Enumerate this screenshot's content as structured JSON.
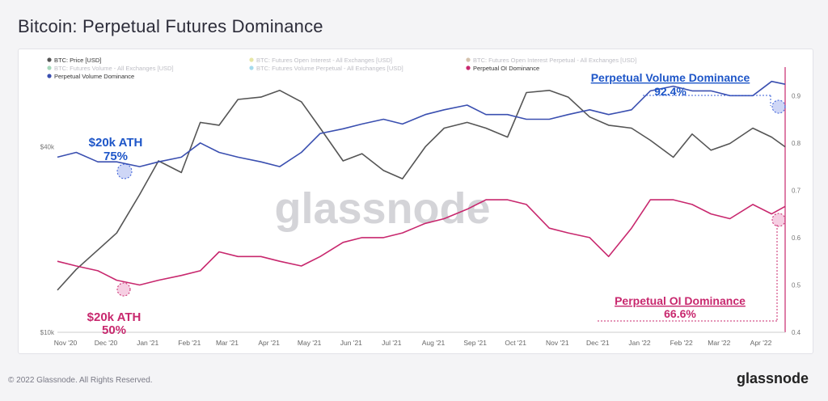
{
  "page": {
    "title": "Bitcoin: Perpetual Futures Dominance",
    "copyright": "© 2022 Glassnode. All Rights Reserved.",
    "brand": "glassnode",
    "watermark": "glassnode"
  },
  "legend": [
    {
      "label": "BTC: Price [USD]",
      "color": "#555555",
      "faded": false
    },
    {
      "label": "BTC: Futures Open Interest - All Exchanges [USD]",
      "color": "#c8c83a",
      "faded": true
    },
    {
      "label": "BTC: Futures Open Interest Perpetual - All Exchanges [USD]",
      "color": "#a0784a",
      "faded": true
    },
    {
      "label": "BTC: Futures Volume - All Exchanges [USD]",
      "color": "#3aa86a",
      "faded": true
    },
    {
      "label": "BTC: Futures Volume Perpetual - All Exchanges [USD]",
      "color": "#3ab0d8",
      "faded": true
    },
    {
      "label": "Perpetual OI Dominance",
      "color": "#c8286e",
      "faded": false
    },
    {
      "label": "Perpetual Volume Dominance",
      "color": "#3a4fb0",
      "faded": false
    }
  ],
  "annotations": {
    "vol_ath_label": "$20k ATH",
    "vol_ath_value": "75%",
    "oi_ath_label": "$20k ATH",
    "oi_ath_value": "50%",
    "vol_now_label": "Perpetual Volume Dominance",
    "vol_now_value": "92.4%",
    "oi_now_label": "Perpetual OI Dominance",
    "oi_now_value": "66.6%"
  },
  "colors": {
    "price": "#555555",
    "volume_dominance": "#3a4fb0",
    "oi_dominance": "#c8286e",
    "annotation_blue": "#1e56c8",
    "annotation_pink": "#c8286e"
  },
  "chart_data": {
    "type": "line",
    "x_ticks": [
      "Nov '20",
      "Dec '20",
      "Jan '21",
      "Feb '21",
      "Mar '21",
      "Apr '21",
      "May '21",
      "Jun '21",
      "Jul '21",
      "Aug '21",
      "Sep '21",
      "Oct '21",
      "Nov '21",
      "Dec '21",
      "Jan '22",
      "Feb '22",
      "Mar '22",
      "Apr '22"
    ],
    "left_axis": {
      "ticks": [
        "$10k",
        "$40k"
      ],
      "scale": "log",
      "range": [
        10000,
        70000
      ]
    },
    "right_axis": {
      "ticks": [
        "0.4",
        "0.5",
        "0.6",
        "0.7",
        "0.8",
        "0.9"
      ],
      "range": [
        0.4,
        0.95
      ]
    },
    "dates": [
      "2020-11-01",
      "2020-11-15",
      "2020-12-01",
      "2020-12-15",
      "2021-01-01",
      "2021-01-15",
      "2021-02-01",
      "2021-02-15",
      "2021-03-01",
      "2021-03-15",
      "2021-04-01",
      "2021-04-15",
      "2021-05-01",
      "2021-05-15",
      "2021-06-01",
      "2021-06-15",
      "2021-07-01",
      "2021-07-15",
      "2021-08-01",
      "2021-08-15",
      "2021-09-01",
      "2021-09-15",
      "2021-10-01",
      "2021-10-15",
      "2021-11-01",
      "2021-11-15",
      "2021-12-01",
      "2021-12-15",
      "2022-01-01",
      "2022-01-15",
      "2022-02-01",
      "2022-02-15",
      "2022-03-01",
      "2022-03-15",
      "2022-04-01",
      "2022-04-15",
      "2022-04-25"
    ],
    "series": [
      {
        "name": "BTC: Price [USD]",
        "axis": "left",
        "values": [
          13700,
          16000,
          18500,
          21000,
          28000,
          36000,
          33000,
          48000,
          47000,
          57000,
          58000,
          61000,
          56000,
          46000,
          36000,
          38000,
          33500,
          31500,
          40000,
          46000,
          48000,
          46000,
          43000,
          60000,
          61000,
          58000,
          50000,
          47000,
          46000,
          42000,
          37000,
          44000,
          39000,
          41000,
          46000,
          43000,
          40000
        ]
      },
      {
        "name": "Perpetual Volume Dominance",
        "axis": "right",
        "values": [
          0.77,
          0.78,
          0.76,
          0.76,
          0.75,
          0.76,
          0.77,
          0.8,
          0.78,
          0.77,
          0.76,
          0.75,
          0.78,
          0.82,
          0.83,
          0.84,
          0.85,
          0.84,
          0.86,
          0.87,
          0.88,
          0.86,
          0.86,
          0.85,
          0.85,
          0.86,
          0.87,
          0.86,
          0.87,
          0.91,
          0.92,
          0.91,
          0.91,
          0.9,
          0.9,
          0.93,
          0.924
        ]
      },
      {
        "name": "Perpetual OI Dominance",
        "axis": "right",
        "values": [
          0.55,
          0.54,
          0.53,
          0.51,
          0.5,
          0.51,
          0.52,
          0.53,
          0.57,
          0.56,
          0.56,
          0.55,
          0.54,
          0.56,
          0.59,
          0.6,
          0.6,
          0.61,
          0.63,
          0.64,
          0.66,
          0.68,
          0.68,
          0.67,
          0.62,
          0.61,
          0.6,
          0.56,
          0.62,
          0.68,
          0.68,
          0.67,
          0.65,
          0.64,
          0.67,
          0.65,
          0.666
        ]
      }
    ]
  }
}
